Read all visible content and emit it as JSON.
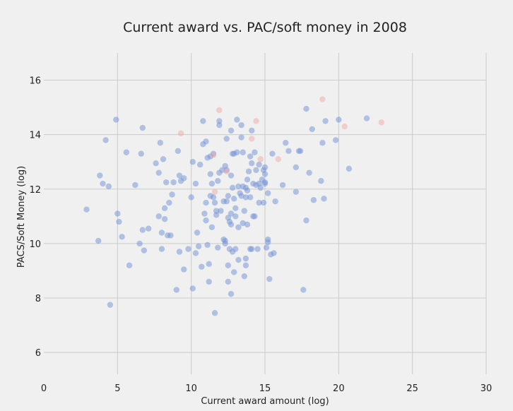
{
  "chart_data": {
    "type": "scatter",
    "title": "Current award vs. PAC/soft money in 2008",
    "xlabel": "Current award amount (log)",
    "ylabel": "PACS/Soft Money (log)",
    "xlim": [
      0,
      30
    ],
    "ylim": [
      5.2,
      17
    ],
    "xticks": [
      "0",
      "5",
      "10",
      "15",
      "20",
      "25",
      "30"
    ],
    "yticks": [
      "6",
      "8",
      "10",
      "12",
      "14",
      "16"
    ],
    "grid": true,
    "colors": {
      "blue": "#6f8fd6",
      "red": "#f0a8a3",
      "background": "#f0f0f0",
      "grid": "#cbcbcb"
    },
    "series": [
      {
        "color": "#6f8fd6",
        "points": [
          [
            2.9,
            11.25
          ],
          [
            3.7,
            10.1
          ],
          [
            3.8,
            12.5
          ],
          [
            4.0,
            12.2
          ],
          [
            4.2,
            13.8
          ],
          [
            4.4,
            12.1
          ],
          [
            4.5,
            7.75
          ],
          [
            4.9,
            14.55
          ],
          [
            5.0,
            11.1
          ],
          [
            5.1,
            10.8
          ],
          [
            5.3,
            10.25
          ],
          [
            5.6,
            13.35
          ],
          [
            5.8,
            9.2
          ],
          [
            6.2,
            12.15
          ],
          [
            6.5,
            10.0
          ],
          [
            6.6,
            13.3
          ],
          [
            6.7,
            10.5
          ],
          [
            6.7,
            14.25
          ],
          [
            6.8,
            9.75
          ],
          [
            7.1,
            10.55
          ],
          [
            7.6,
            12.95
          ],
          [
            7.8,
            11.0
          ],
          [
            7.8,
            12.6
          ],
          [
            7.9,
            13.7
          ],
          [
            8.0,
            10.4
          ],
          [
            8.0,
            9.8
          ],
          [
            8.1,
            13.1
          ],
          [
            8.2,
            11.3
          ],
          [
            8.2,
            10.9
          ],
          [
            8.3,
            12.25
          ],
          [
            8.4,
            10.3
          ],
          [
            8.5,
            11.5
          ],
          [
            8.6,
            10.3
          ],
          [
            8.7,
            11.8
          ],
          [
            8.8,
            12.25
          ],
          [
            9.0,
            8.3
          ],
          [
            9.1,
            13.4
          ],
          [
            9.2,
            9.7
          ],
          [
            9.2,
            12.5
          ],
          [
            9.3,
            12.3
          ],
          [
            9.5,
            9.05
          ],
          [
            9.5,
            12.4
          ],
          [
            9.8,
            9.8
          ],
          [
            10.0,
            11.7
          ],
          [
            10.1,
            13.0
          ],
          [
            10.1,
            8.35
          ],
          [
            10.3,
            9.65
          ],
          [
            10.3,
            12.2
          ],
          [
            10.4,
            10.4
          ],
          [
            10.5,
            9.9
          ],
          [
            10.6,
            12.9
          ],
          [
            10.7,
            9.15
          ],
          [
            10.8,
            13.65
          ],
          [
            10.8,
            14.5
          ],
          [
            10.9,
            11.1
          ],
          [
            11.0,
            11.5
          ],
          [
            11.0,
            13.75
          ],
          [
            11.0,
            10.85
          ],
          [
            11.1,
            9.95
          ],
          [
            11.1,
            13.15
          ],
          [
            11.2,
            8.6
          ],
          [
            11.2,
            9.25
          ],
          [
            11.3,
            13.2
          ],
          [
            11.3,
            12.55
          ],
          [
            11.3,
            11.75
          ],
          [
            11.4,
            12.2
          ],
          [
            11.4,
            10.6
          ],
          [
            11.5,
            11.7
          ],
          [
            11.5,
            13.3
          ],
          [
            11.6,
            7.45
          ],
          [
            11.6,
            11.5
          ],
          [
            11.7,
            11.05
          ],
          [
            11.7,
            11.2
          ],
          [
            11.8,
            9.85
          ],
          [
            11.8,
            12.3
          ],
          [
            11.9,
            14.35
          ],
          [
            11.9,
            14.5
          ],
          [
            11.9,
            12.6
          ],
          [
            12.0,
            11.2
          ],
          [
            12.1,
            12.7
          ],
          [
            12.2,
            10.15
          ],
          [
            12.2,
            11.55
          ],
          [
            12.3,
            10.1
          ],
          [
            12.3,
            10.0
          ],
          [
            12.3,
            12.85
          ],
          [
            12.4,
            13.85
          ],
          [
            12.4,
            11.55
          ],
          [
            12.4,
            12.7
          ],
          [
            12.5,
            9.2
          ],
          [
            12.5,
            10.95
          ],
          [
            12.5,
            11.75
          ],
          [
            12.5,
            8.6
          ],
          [
            12.6,
            10.8
          ],
          [
            12.6,
            9.8
          ],
          [
            12.7,
            8.15
          ],
          [
            12.7,
            12.5
          ],
          [
            12.7,
            11.1
          ],
          [
            12.7,
            10.7
          ],
          [
            12.7,
            14.15
          ],
          [
            12.8,
            13.3
          ],
          [
            12.8,
            9.7
          ],
          [
            12.8,
            12.05
          ],
          [
            12.9,
            11.65
          ],
          [
            12.9,
            8.95
          ],
          [
            12.9,
            13.3
          ],
          [
            13.0,
            11.3
          ],
          [
            13.0,
            11.0
          ],
          [
            13.0,
            9.8
          ],
          [
            13.1,
            13.35
          ],
          [
            13.1,
            14.55
          ],
          [
            13.2,
            12.1
          ],
          [
            13.2,
            10.6
          ],
          [
            13.2,
            9.4
          ],
          [
            13.3,
            11.85
          ],
          [
            13.4,
            11.75
          ],
          [
            13.4,
            13.9
          ],
          [
            13.4,
            14.35
          ],
          [
            13.5,
            13.35
          ],
          [
            13.5,
            12.1
          ],
          [
            13.5,
            10.75
          ],
          [
            13.6,
            11.2
          ],
          [
            13.6,
            8.8
          ],
          [
            13.7,
            9.2
          ],
          [
            13.7,
            12.05
          ],
          [
            13.7,
            11.7
          ],
          [
            13.7,
            9.45
          ],
          [
            13.8,
            12.35
          ],
          [
            13.8,
            10.7
          ],
          [
            13.8,
            11.95
          ],
          [
            13.9,
            12.65
          ],
          [
            14.0,
            9.8
          ],
          [
            14.0,
            13.2
          ],
          [
            14.0,
            11.7
          ],
          [
            14.1,
            14.15
          ],
          [
            14.1,
            12.95
          ],
          [
            14.1,
            9.8
          ],
          [
            14.2,
            11.0
          ],
          [
            14.2,
            12.2
          ],
          [
            14.3,
            13.35
          ],
          [
            14.3,
            11.0
          ],
          [
            14.4,
            12.7
          ],
          [
            14.4,
            12.15
          ],
          [
            14.5,
            9.8
          ],
          [
            14.6,
            11.5
          ],
          [
            14.6,
            12.9
          ],
          [
            14.6,
            12.2
          ],
          [
            14.7,
            12.05
          ],
          [
            14.8,
            12.35
          ],
          [
            14.9,
            11.5
          ],
          [
            14.9,
            12.7
          ],
          [
            15.0,
            12.55
          ],
          [
            15.0,
            12.25
          ],
          [
            15.0,
            12.2
          ],
          [
            15.0,
            12.8
          ],
          [
            15.1,
            9.85
          ],
          [
            15.2,
            10.15
          ],
          [
            15.2,
            10.05
          ],
          [
            15.2,
            11.85
          ],
          [
            15.3,
            8.7
          ],
          [
            15.4,
            9.6
          ],
          [
            15.5,
            13.3
          ],
          [
            15.6,
            9.65
          ],
          [
            15.7,
            11.55
          ],
          [
            16.2,
            12.15
          ],
          [
            16.4,
            13.7
          ],
          [
            16.6,
            13.4
          ],
          [
            17.1,
            12.8
          ],
          [
            17.1,
            11.9
          ],
          [
            17.3,
            13.4
          ],
          [
            17.4,
            13.4
          ],
          [
            17.6,
            8.3
          ],
          [
            17.8,
            14.95
          ],
          [
            17.8,
            10.85
          ],
          [
            18.0,
            12.6
          ],
          [
            18.2,
            14.2
          ],
          [
            18.3,
            11.6
          ],
          [
            18.8,
            12.3
          ],
          [
            18.9,
            13.7
          ],
          [
            19.0,
            11.65
          ],
          [
            19.1,
            14.5
          ],
          [
            19.8,
            13.8
          ],
          [
            20.0,
            14.55
          ],
          [
            20.7,
            12.75
          ],
          [
            21.9,
            14.6
          ]
        ]
      },
      {
        "color": "#f0a8a3",
        "points": [
          [
            9.3,
            14.05
          ],
          [
            11.5,
            13.25
          ],
          [
            11.6,
            11.9
          ],
          [
            11.9,
            14.9
          ],
          [
            12.4,
            12.65
          ],
          [
            14.1,
            13.85
          ],
          [
            14.4,
            14.5
          ],
          [
            14.7,
            13.1
          ],
          [
            15.9,
            13.1
          ],
          [
            18.9,
            15.3
          ],
          [
            20.4,
            14.3
          ],
          [
            22.9,
            14.45
          ]
        ]
      }
    ]
  }
}
